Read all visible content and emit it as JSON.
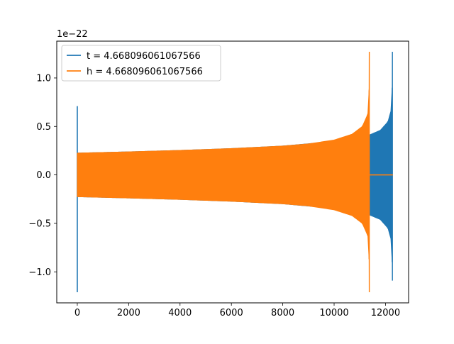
{
  "chart_data": {
    "type": "line",
    "title": "",
    "xlabel": "",
    "ylabel": "",
    "y_offset_text": "1e−22",
    "xlim": [
      -800,
      12900
    ],
    "ylim": [
      -1.32,
      1.38
    ],
    "xticks": [
      {
        "value": 0,
        "label": "0"
      },
      {
        "value": 2000,
        "label": "2000"
      },
      {
        "value": 4000,
        "label": "4000"
      },
      {
        "value": 6000,
        "label": "6000"
      },
      {
        "value": 8000,
        "label": "8000"
      },
      {
        "value": 10000,
        "label": "10000"
      },
      {
        "value": 12000,
        "label": "12000"
      }
    ],
    "yticks": [
      {
        "value": -1.0,
        "label": "−1.0"
      },
      {
        "value": -0.5,
        "label": "−0.5"
      },
      {
        "value": 0.0,
        "label": "0.0"
      },
      {
        "value": 0.5,
        "label": "0.5"
      },
      {
        "value": 1.0,
        "label": "1.0"
      }
    ],
    "grid": false,
    "legend_position": "upper-left",
    "series": [
      {
        "name": "t = 4.668096061067566",
        "color": "#1f77b4",
        "x_start": 0,
        "x_end": 12288,
        "initial_spike": {
          "max": 0.71,
          "min": -1.21
        },
        "envelope": [
          {
            "x": 0,
            "amp": 0.225
          },
          {
            "x": 2000,
            "amp": 0.238
          },
          {
            "x": 4000,
            "amp": 0.253
          },
          {
            "x": 6000,
            "amp": 0.272
          },
          {
            "x": 8000,
            "amp": 0.298
          },
          {
            "x": 10000,
            "amp": 0.345
          },
          {
            "x": 11000,
            "amp": 0.385
          },
          {
            "x": 11400,
            "amp": 0.415
          },
          {
            "x": 11800,
            "amp": 0.46
          },
          {
            "x": 12100,
            "amp": 0.55
          },
          {
            "x": 12200,
            "amp": 0.65
          }
        ],
        "final_spike": {
          "x": 12270,
          "max": 1.27,
          "min": -1.09
        }
      },
      {
        "name": "h = 4.668096061067566",
        "color": "#ff7f0e",
        "x_start": 0,
        "x_end": 12288,
        "envelope": [
          {
            "x": 0,
            "amp": 0.225
          },
          {
            "x": 2000,
            "amp": 0.238
          },
          {
            "x": 4000,
            "amp": 0.253
          },
          {
            "x": 6000,
            "amp": 0.272
          },
          {
            "x": 8000,
            "amp": 0.298
          },
          {
            "x": 9000,
            "amp": 0.32
          },
          {
            "x": 10000,
            "amp": 0.36
          },
          {
            "x": 10700,
            "amp": 0.42
          },
          {
            "x": 11100,
            "amp": 0.5
          },
          {
            "x": 11300,
            "amp": 0.62
          }
        ],
        "final_spike": {
          "x": 11370,
          "max": 1.27,
          "min": -1.21
        },
        "flat_after": {
          "x_from": 11380,
          "value": 0.0
        }
      }
    ]
  }
}
